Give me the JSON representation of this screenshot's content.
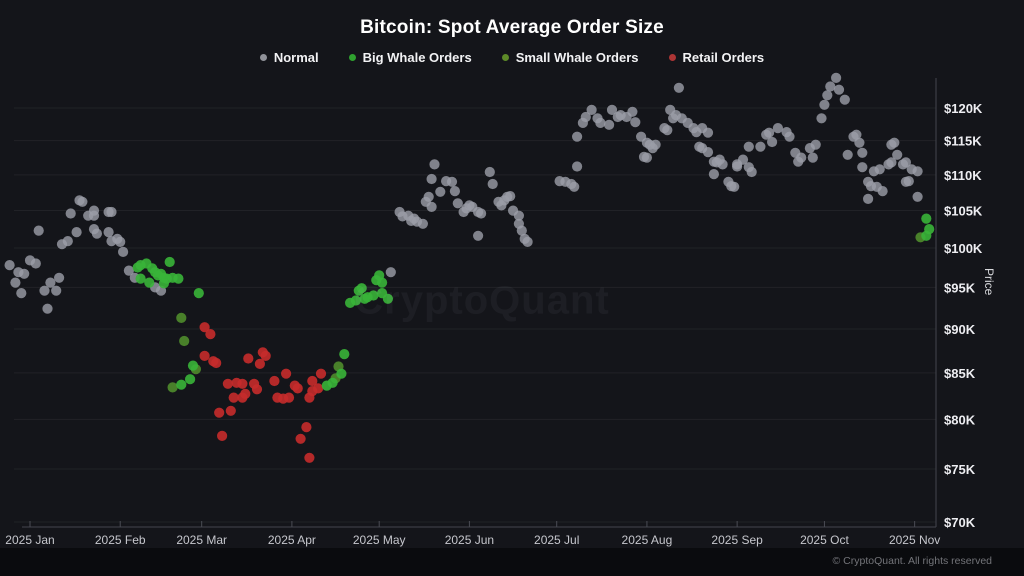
{
  "title": "Bitcoin: Spot Average Order Size",
  "watermark": {
    "text": "CryptoQuant"
  },
  "footer": {
    "copyright": "© CryptoQuant. All rights reserved"
  },
  "legend": [
    {
      "key": "normal",
      "label": "Normal",
      "color": "#909299"
    },
    {
      "key": "big_whale",
      "label": "Big Whale Orders",
      "color": "#2fa12f"
    },
    {
      "key": "small_whale",
      "label": "Small Whale Orders",
      "color": "#5d8a28"
    },
    {
      "key": "retail",
      "label": "Retail Orders",
      "color": "#ad3535"
    }
  ],
  "chart_data": {
    "type": "scatter",
    "title": "Bitcoin: Spot Average Order Size",
    "xlabel": "",
    "ylabel": "Price",
    "x_unit": "day_of_year_2025 (0 = 2025-01-01, negative = late Dec 2024)",
    "y_unit": "BTC price, thousands of USD",
    "y_scale": "log",
    "ylim": [
      69.5,
      125.5
    ],
    "grid": "horizontal, faint",
    "legend_position": "top-center",
    "x_ticks": [
      {
        "label": "2025 Jan",
        "day": 0
      },
      {
        "label": "2025 Feb",
        "day": 31
      },
      {
        "label": "2025 Mar",
        "day": 59
      },
      {
        "label": "2025 Apr",
        "day": 90
      },
      {
        "label": "2025 May",
        "day": 120
      },
      {
        "label": "2025 Jun",
        "day": 151
      },
      {
        "label": "2025 Jul",
        "day": 181
      },
      {
        "label": "2025 Aug",
        "day": 212
      },
      {
        "label": "2025 Sep",
        "day": 243
      },
      {
        "label": "2025 Oct",
        "day": 273
      },
      {
        "label": "2025 Nov",
        "day": 304
      }
    ],
    "y_ticks": [
      {
        "label": "$120K",
        "value": 120
      },
      {
        "label": "$115K",
        "value": 115
      },
      {
        "label": "$110K",
        "value": 110
      },
      {
        "label": "$105K",
        "value": 105
      },
      {
        "label": "$100K",
        "value": 100
      },
      {
        "label": "$95K",
        "value": 95
      },
      {
        "label": "$90K",
        "value": 90
      },
      {
        "label": "$85K",
        "value": 85
      },
      {
        "label": "$80K",
        "value": 80
      },
      {
        "label": "$75K",
        "value": 75
      },
      {
        "label": "$70K",
        "value": 70
      }
    ],
    "series": [
      {
        "name": "Normal",
        "key": "normal",
        "color": "#9b9da7",
        "opacity": 0.8,
        "points": [
          [
            -7,
            97.8
          ],
          [
            -5,
            95.6
          ],
          [
            -4,
            96.9
          ],
          [
            -3,
            94.3
          ],
          [
            -2,
            96.7
          ],
          [
            0,
            98.4
          ],
          [
            2,
            98.0
          ],
          [
            3,
            102.3
          ],
          [
            5,
            94.6
          ],
          [
            6,
            92.4
          ],
          [
            7,
            95.6
          ],
          [
            9,
            94.6
          ],
          [
            10,
            96.2
          ],
          [
            11,
            100.5
          ],
          [
            13,
            100.9
          ],
          [
            14,
            104.6
          ],
          [
            16,
            102.1
          ],
          [
            17,
            106.4
          ],
          [
            18,
            106.2
          ],
          [
            20,
            104.3
          ],
          [
            22,
            104.3
          ],
          [
            22,
            102.5
          ],
          [
            22,
            105.0
          ],
          [
            23,
            101.9
          ],
          [
            27,
            104.8
          ],
          [
            27,
            102.1
          ],
          [
            28,
            100.9
          ],
          [
            28,
            104.8
          ],
          [
            30,
            101.2
          ],
          [
            31,
            100.8
          ],
          [
            32,
            99.5
          ],
          [
            34,
            97.1
          ],
          [
            36,
            96.2
          ],
          [
            43,
            95.0
          ],
          [
            45,
            94.6
          ],
          [
            124,
            96.9
          ],
          [
            127,
            104.8
          ],
          [
            128,
            104.2
          ],
          [
            130,
            104.3
          ],
          [
            131,
            103.6
          ],
          [
            132,
            103.9
          ],
          [
            133,
            103.5
          ],
          [
            135,
            103.2
          ],
          [
            136,
            106.2
          ],
          [
            137,
            106.9
          ],
          [
            138,
            105.5
          ],
          [
            138,
            109.4
          ],
          [
            139,
            111.5
          ],
          [
            141,
            107.6
          ],
          [
            143,
            109.1
          ],
          [
            145,
            109.0
          ],
          [
            146,
            107.7
          ],
          [
            147,
            106.0
          ],
          [
            149,
            104.8
          ],
          [
            150,
            105.3
          ],
          [
            151,
            105.7
          ],
          [
            152,
            105.5
          ],
          [
            154,
            101.6
          ],
          [
            154,
            104.8
          ],
          [
            155,
            104.6
          ],
          [
            158,
            110.4
          ],
          [
            159,
            108.7
          ],
          [
            161,
            106.2
          ],
          [
            162,
            105.7
          ],
          [
            163,
            106.4
          ],
          [
            164,
            106.9
          ],
          [
            165,
            107.0
          ],
          [
            166,
            105.0
          ],
          [
            168,
            104.3
          ],
          [
            168,
            103.2
          ],
          [
            169,
            102.3
          ],
          [
            170,
            101.2
          ],
          [
            171,
            100.8
          ],
          [
            182,
            109.1
          ],
          [
            184,
            109.0
          ],
          [
            186,
            108.7
          ],
          [
            187,
            108.3
          ],
          [
            188,
            111.2
          ],
          [
            188,
            115.6
          ],
          [
            190,
            117.7
          ],
          [
            191,
            118.6
          ],
          [
            193,
            119.7
          ],
          [
            195,
            118.4
          ],
          [
            196,
            117.7
          ],
          [
            199,
            117.4
          ],
          [
            200,
            119.7
          ],
          [
            202,
            118.6
          ],
          [
            203,
            118.9
          ],
          [
            205,
            118.6
          ],
          [
            207,
            119.4
          ],
          [
            208,
            117.8
          ],
          [
            210,
            115.6
          ],
          [
            211,
            112.6
          ],
          [
            212,
            114.7
          ],
          [
            212,
            112.5
          ],
          [
            213,
            114.4
          ],
          [
            214,
            113.9
          ],
          [
            215,
            114.4
          ],
          [
            218,
            116.9
          ],
          [
            219,
            116.6
          ],
          [
            220,
            119.7
          ],
          [
            221,
            118.4
          ],
          [
            222,
            118.9
          ],
          [
            223,
            123.2
          ],
          [
            224,
            118.4
          ],
          [
            226,
            117.7
          ],
          [
            228,
            116.9
          ],
          [
            229,
            116.3
          ],
          [
            230,
            114.1
          ],
          [
            231,
            113.9
          ],
          [
            231,
            116.9
          ],
          [
            233,
            116.2
          ],
          [
            233,
            113.3
          ],
          [
            235,
            111.9
          ],
          [
            235,
            110.1
          ],
          [
            236,
            111.8
          ],
          [
            237,
            112.2
          ],
          [
            238,
            111.5
          ],
          [
            240,
            109.0
          ],
          [
            241,
            108.4
          ],
          [
            242,
            108.3
          ],
          [
            243,
            111.5
          ],
          [
            243,
            111.2
          ],
          [
            245,
            112.2
          ],
          [
            247,
            111.1
          ],
          [
            247,
            114.1
          ],
          [
            248,
            110.4
          ],
          [
            251,
            114.1
          ],
          [
            253,
            115.9
          ],
          [
            254,
            116.2
          ],
          [
            255,
            114.8
          ],
          [
            257,
            116.9
          ],
          [
            260,
            116.3
          ],
          [
            261,
            115.6
          ],
          [
            263,
            113.2
          ],
          [
            264,
            111.9
          ],
          [
            265,
            112.5
          ],
          [
            268,
            113.9
          ],
          [
            269,
            112.5
          ],
          [
            270,
            114.4
          ],
          [
            272,
            118.4
          ],
          [
            273,
            120.5
          ],
          [
            274,
            122.0
          ],
          [
            275,
            123.4
          ],
          [
            277,
            124.8
          ],
          [
            278,
            122.9
          ],
          [
            280,
            121.3
          ],
          [
            281,
            112.9
          ],
          [
            283,
            115.6
          ],
          [
            284,
            115.9
          ],
          [
            285,
            114.7
          ],
          [
            286,
            111.1
          ],
          [
            286,
            113.2
          ],
          [
            288,
            109.0
          ],
          [
            288,
            106.6
          ],
          [
            289,
            108.4
          ],
          [
            290,
            110.5
          ],
          [
            291,
            108.3
          ],
          [
            292,
            110.8
          ],
          [
            293,
            107.7
          ],
          [
            295,
            111.5
          ],
          [
            296,
            114.4
          ],
          [
            296,
            111.8
          ],
          [
            297,
            114.7
          ],
          [
            298,
            112.9
          ],
          [
            300,
            111.5
          ],
          [
            301,
            109.0
          ],
          [
            301,
            111.8
          ],
          [
            302,
            109.1
          ],
          [
            303,
            110.8
          ],
          [
            305,
            110.5
          ],
          [
            305,
            106.9
          ]
        ]
      },
      {
        "name": "Big Whale Orders",
        "key": "big_whale",
        "color": "#38b438",
        "opacity": 0.9,
        "points": [
          [
            37,
            97.5
          ],
          [
            38,
            96.1
          ],
          [
            38,
            97.8
          ],
          [
            40,
            98.0
          ],
          [
            41,
            95.6
          ],
          [
            42,
            97.4
          ],
          [
            43,
            96.9
          ],
          [
            44,
            96.5
          ],
          [
            45,
            96.7
          ],
          [
            46,
            96.2
          ],
          [
            47,
            96.1
          ],
          [
            48,
            98.2
          ],
          [
            49,
            96.2
          ],
          [
            51,
            96.1
          ],
          [
            46,
            95.5
          ],
          [
            58,
            94.3
          ],
          [
            56,
            85.8
          ],
          [
            55,
            84.3
          ],
          [
            52,
            83.7
          ],
          [
            102,
            83.6
          ],
          [
            104,
            83.9
          ],
          [
            107,
            84.9
          ],
          [
            108,
            87.1
          ],
          [
            110,
            93.1
          ],
          [
            112,
            93.4
          ],
          [
            113,
            94.6
          ],
          [
            114,
            94.9
          ],
          [
            115,
            93.6
          ],
          [
            116,
            93.8
          ],
          [
            118,
            94.0
          ],
          [
            119,
            95.9
          ],
          [
            120,
            96.5
          ],
          [
            121,
            95.6
          ],
          [
            121,
            94.3
          ],
          [
            123,
            93.6
          ],
          [
            308,
            103.9
          ],
          [
            309,
            102.5
          ],
          [
            308,
            101.6
          ]
        ]
      },
      {
        "name": "Small Whale Orders",
        "key": "small_whale",
        "color": "#4f8c2c",
        "opacity": 0.9,
        "points": [
          [
            52,
            91.3
          ],
          [
            53,
            88.6
          ],
          [
            57,
            85.4
          ],
          [
            49,
            83.4
          ],
          [
            105,
            84.4
          ],
          [
            106,
            85.7
          ],
          [
            306,
            101.4
          ]
        ]
      },
      {
        "name": "Retail Orders",
        "key": "retail",
        "color": "#c52b2b",
        "opacity": 0.9,
        "points": [
          [
            60,
            90.2
          ],
          [
            62,
            89.4
          ],
          [
            60,
            86.9
          ],
          [
            63,
            86.3
          ],
          [
            64,
            86.1
          ],
          [
            65,
            80.7
          ],
          [
            69,
            80.9
          ],
          [
            66,
            78.3
          ],
          [
            68,
            83.8
          ],
          [
            70,
            82.3
          ],
          [
            71,
            83.9
          ],
          [
            73,
            82.3
          ],
          [
            74,
            82.7
          ],
          [
            73,
            83.8
          ],
          [
            75,
            86.6
          ],
          [
            77,
            83.8
          ],
          [
            78,
            83.2
          ],
          [
            79,
            86.0
          ],
          [
            80,
            87.3
          ],
          [
            81,
            86.9
          ],
          [
            84,
            84.1
          ],
          [
            85,
            82.3
          ],
          [
            87,
            82.2
          ],
          [
            88,
            84.9
          ],
          [
            89,
            82.3
          ],
          [
            91,
            83.6
          ],
          [
            92,
            83.3
          ],
          [
            93,
            78.0
          ],
          [
            95,
            79.2
          ],
          [
            96,
            76.1
          ],
          [
            96,
            82.3
          ],
          [
            97,
            83.0
          ],
          [
            99,
            83.3
          ],
          [
            100,
            84.9
          ],
          [
            97,
            84.1
          ]
        ]
      }
    ]
  }
}
